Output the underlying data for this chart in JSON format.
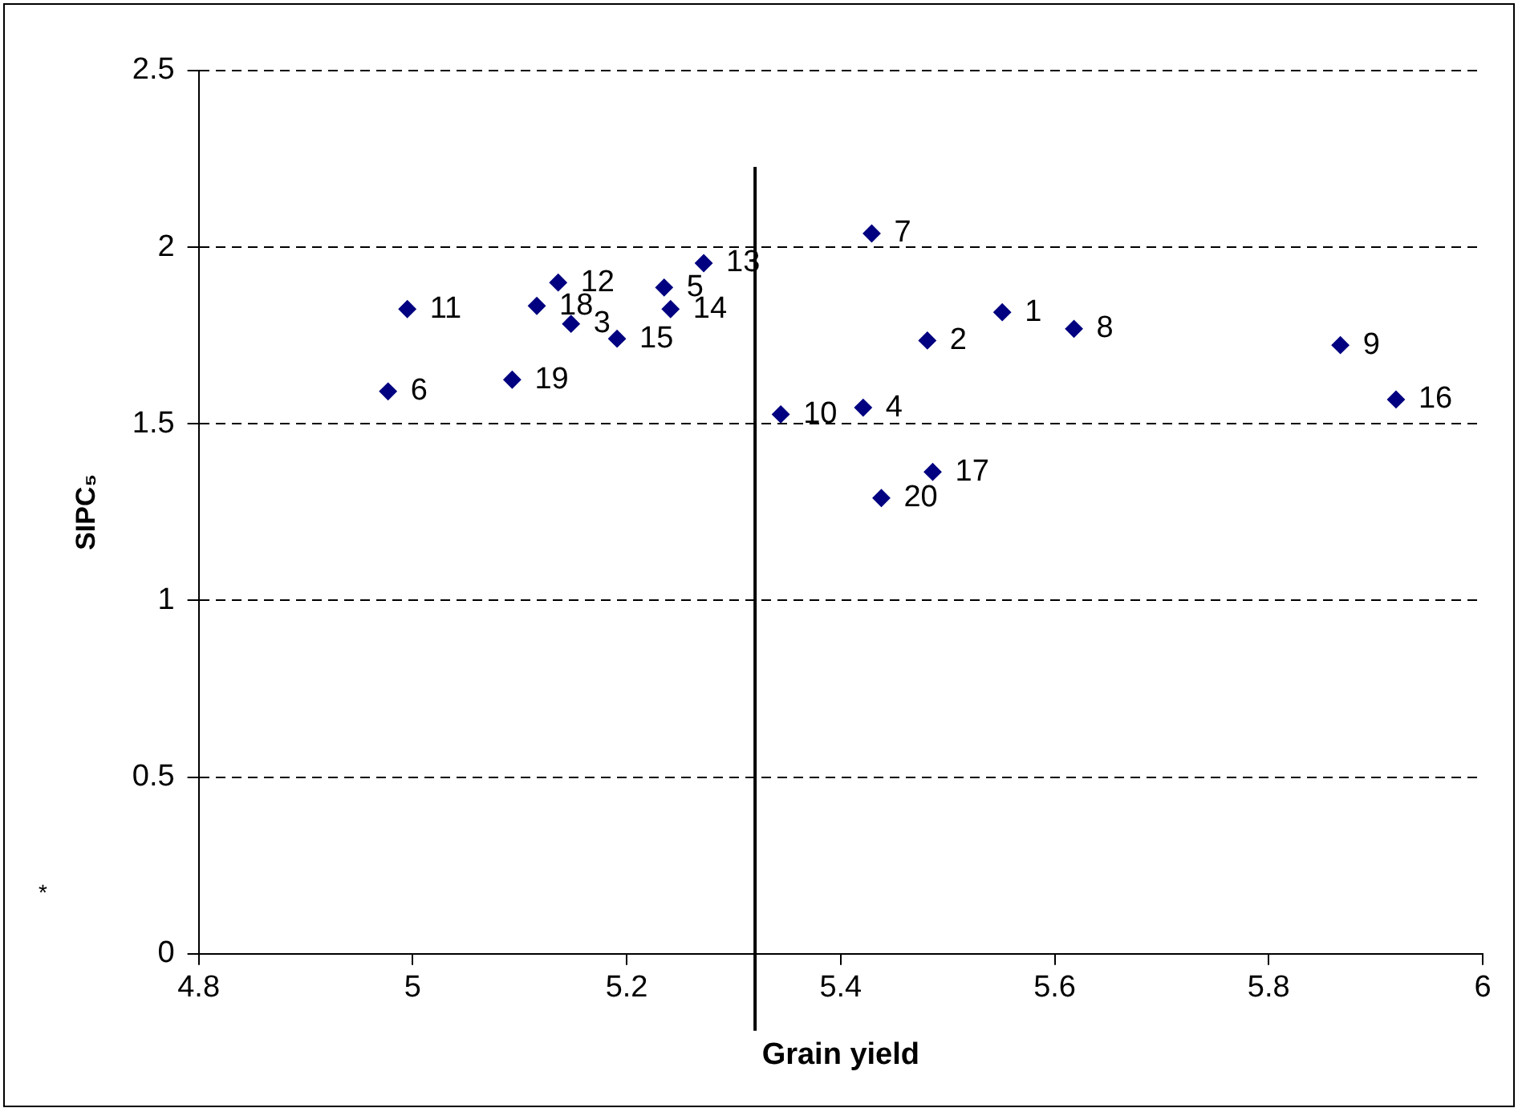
{
  "chart_data": {
    "type": "scatter",
    "xlabel": "Grain yield",
    "ylabel": "SIPC₅",
    "annotations": [
      "*",
      {
        "text": "1",
        "x": 5.551,
        "y": 1.816
      },
      {
        "text": "2",
        "x": 5.481,
        "y": 1.736
      },
      {
        "text": "3",
        "x": 5.148,
        "y": 1.783
      },
      {
        "text": "4",
        "x": 5.421,
        "y": 1.546
      },
      {
        "text": "5",
        "x": 5.235,
        "y": 1.886
      },
      {
        "text": "6",
        "x": 4.977,
        "y": 1.592
      },
      {
        "text": "7",
        "x": 5.429,
        "y": 2.039
      },
      {
        "text": "8",
        "x": 5.618,
        "y": 1.769
      },
      {
        "text": "9",
        "x": 5.867,
        "y": 1.723
      },
      {
        "text": "10",
        "x": 5.344,
        "y": 1.527
      },
      {
        "text": "11",
        "x": 4.995,
        "y": 1.825
      },
      {
        "text": "12",
        "x": 5.136,
        "y": 1.9
      },
      {
        "text": "13",
        "x": 5.272,
        "y": 1.955
      },
      {
        "text": "14",
        "x": 5.241,
        "y": 1.825
      },
      {
        "text": "15",
        "x": 5.191,
        "y": 1.741
      },
      {
        "text": "16",
        "x": 5.919,
        "y": 1.569
      },
      {
        "text": "17",
        "x": 5.486,
        "y": 1.364
      },
      {
        "text": "18",
        "x": 5.116,
        "y": 1.834
      },
      {
        "text": "19",
        "x": 5.093,
        "y": 1.625
      },
      {
        "text": "20",
        "x": 5.438,
        "y": 1.29
      }
    ],
    "x": [
      5.551,
      5.481,
      5.148,
      5.421,
      5.235,
      4.977,
      5.429,
      5.618,
      5.867,
      5.344,
      4.995,
      5.136,
      5.272,
      5.241,
      5.191,
      5.919,
      5.486,
      5.116,
      5.093,
      5.438
    ],
    "series": [
      {
        "color": "#000080",
        "values": [
          1.816,
          1.736,
          1.783,
          1.546,
          1.886,
          1.592,
          2.039,
          1.769,
          1.723,
          1.527,
          1.825,
          1.9,
          1.955,
          1.825,
          1.741,
          1.569,
          1.364,
          1.834,
          1.625,
          1.29
        ]
      }
    ],
    "xlim": [
      4.8,
      6
    ],
    "xticks": [
      4.8,
      5,
      5.2,
      5.4,
      5.6,
      5.8,
      6
    ],
    "ylim": [
      0,
      2.5
    ],
    "yticks": [
      0,
      0.5,
      1,
      1.5,
      2,
      2.5
    ],
    "ref_lines": [
      {
        "axis": "x",
        "value": 5.32,
        "color": "#000000"
      }
    ],
    "grid": "y",
    "marker": "diamond",
    "legend": false
  }
}
